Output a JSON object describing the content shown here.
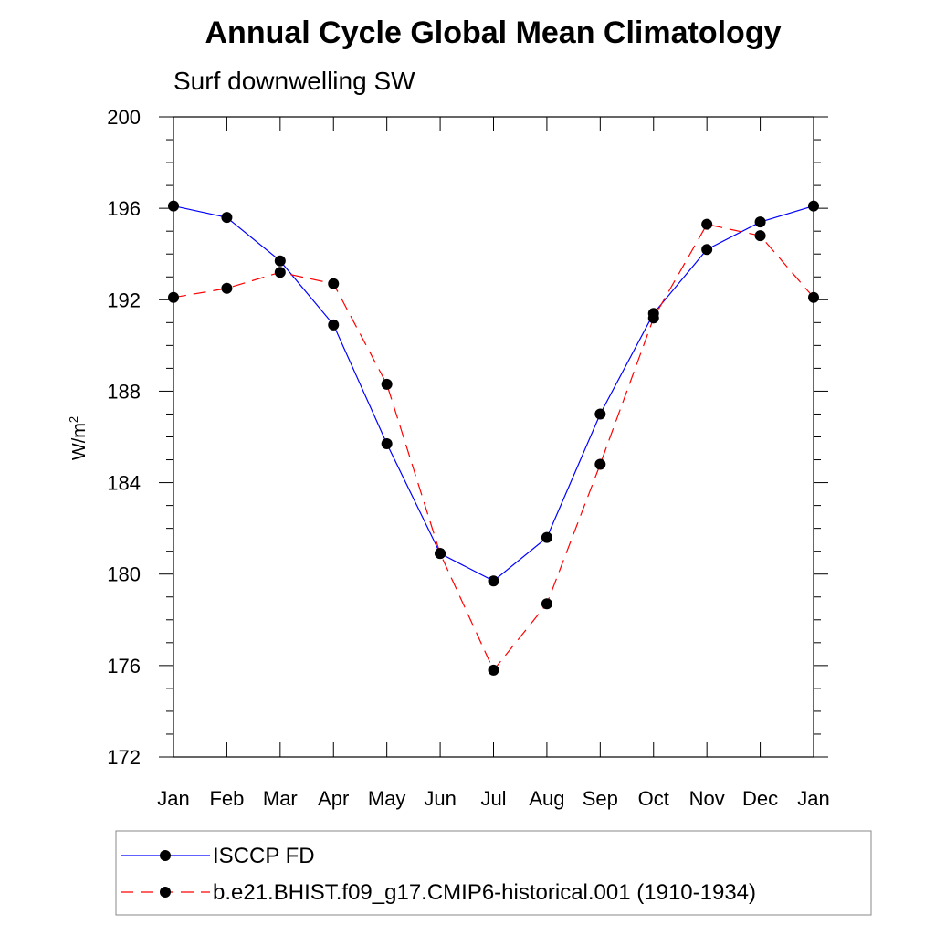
{
  "chart_data": {
    "type": "line",
    "title": "Annual Cycle Global Mean Climatology",
    "subtitle": "Surf downwelling SW",
    "xlabel": "",
    "ylabel_base": "W/m",
    "ylabel_sup": "2",
    "categories": [
      "Jan",
      "Feb",
      "Mar",
      "Apr",
      "May",
      "Jun",
      "Jul",
      "Aug",
      "Sep",
      "Oct",
      "Nov",
      "Dec",
      "Jan"
    ],
    "ylim": [
      172,
      200
    ],
    "yticks": [
      172,
      176,
      180,
      184,
      188,
      192,
      196,
      200
    ],
    "series": [
      {
        "name": "ISCCP FD",
        "color": "#0000ff",
        "dash": "solid",
        "values": [
          196.1,
          195.6,
          193.7,
          190.9,
          185.7,
          180.9,
          179.7,
          181.6,
          187.0,
          191.4,
          194.2,
          195.4,
          196.1
        ]
      },
      {
        "name": "b.e21.BHIST.f09_g17.CMIP6-historical.001 (1910-1934)",
        "color": "#ff0000",
        "dash": "dashed",
        "values": [
          192.1,
          192.5,
          193.2,
          192.7,
          188.3,
          180.9,
          175.8,
          178.7,
          184.8,
          191.2,
          195.3,
          194.8,
          192.1
        ]
      }
    ],
    "legend_position": "bottom"
  }
}
